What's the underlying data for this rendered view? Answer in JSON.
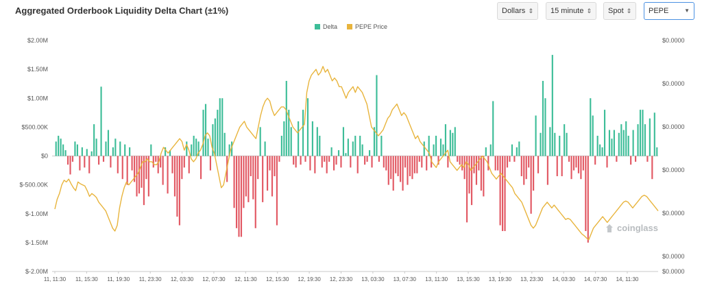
{
  "header": {
    "title": "Aggregated Orderbook Liquidity Delta Chart (±1%)"
  },
  "controls": {
    "currency": "Dollars",
    "interval": "15 minute",
    "market": "Spot",
    "symbol": "PEPE"
  },
  "watermark": "coinglass",
  "colors": {
    "positive": "#3dbd98",
    "negative": "#e25863",
    "price": "#e8b43c",
    "grid": "#f0f0f0",
    "axis": "#c8c8c8"
  },
  "chart_data": {
    "type": "bar",
    "title": "Aggregated Orderbook Liquidity Delta Chart (±1%)",
    "legend": [
      "Delta",
      "PEPE Price"
    ],
    "legend_position": "top-center",
    "grid": false,
    "y_left": {
      "ticks": [
        "$2.00M",
        "$1.50M",
        "$1.00M",
        "$500.00K",
        "$0",
        "$-500.00K",
        "$-1.00M",
        "$-1.50M",
        "$-2.00M"
      ],
      "values": [
        2000000,
        1500000,
        1000000,
        500000,
        0,
        -500000,
        -1000000,
        -1500000,
        -2000000
      ],
      "range": [
        -2000000,
        2000000
      ]
    },
    "y_right": {
      "ticks": [
        "$0.0000",
        "$0.0000",
        "$0.0000",
        "$0.0000",
        "$0.0000",
        "$0.0000",
        "$0.0000"
      ]
    },
    "x_ticks": [
      "11, 11:30",
      "11, 15:30",
      "11, 19:30",
      "11, 23:30",
      "12, 03:30",
      "12, 07:30",
      "12, 11:30",
      "12, 15:30",
      "12, 19:30",
      "12, 23:30",
      "13, 03:30",
      "13, 07:30",
      "13, 11:30",
      "13, 15:30",
      "13, 19:30",
      "13, 23:30",
      "14, 03:30",
      "14, 07:30",
      "14, 11:30"
    ],
    "series": [
      {
        "name": "Delta",
        "kind": "bar",
        "values": [
          250000,
          350000,
          300000,
          200000,
          100000,
          -150000,
          -320000,
          -100000,
          250000,
          200000,
          -250000,
          150000,
          -200000,
          120000,
          -300000,
          80000,
          550000,
          300000,
          -150000,
          1200000,
          -100000,
          250000,
          450000,
          -200000,
          150000,
          300000,
          -300000,
          250000,
          -400000,
          200000,
          -500000,
          150000,
          -250000,
          -450000,
          -700000,
          -650000,
          -550000,
          -850000,
          -400000,
          -700000,
          200000,
          -200000,
          -100000,
          -300000,
          -200000,
          -500000,
          150000,
          -650000,
          100000,
          -300000,
          -700000,
          -1050000,
          -1200000,
          -400000,
          -200000,
          250000,
          -300000,
          200000,
          350000,
          300000,
          250000,
          -400000,
          800000,
          900000,
          300000,
          -250000,
          550000,
          650000,
          800000,
          1000000,
          1000000,
          400000,
          -450000,
          200000,
          250000,
          -900000,
          -1250000,
          -1400000,
          -1400000,
          -900000,
          -700000,
          -800000,
          -350000,
          -750000,
          -1250000,
          -400000,
          500000,
          -800000,
          250000,
          -600000,
          -250000,
          -700000,
          -350000,
          -1200000,
          -100000,
          350000,
          600000,
          1300000,
          800000,
          500000,
          -150000,
          -200000,
          600000,
          -150000,
          800000,
          -100000,
          1000000,
          -250000,
          600000,
          -300000,
          500000,
          350000,
          -200000,
          -100000,
          -300000,
          -100000,
          150000,
          -250000,
          -150000,
          100000,
          -200000,
          500000,
          50000,
          300000,
          -200000,
          250000,
          350000,
          -300000,
          350000,
          200000,
          -150000,
          -100000,
          100000,
          -200000,
          500000,
          1400000,
          -100000,
          350000,
          -200000,
          -250000,
          -500000,
          -400000,
          -600000,
          -300000,
          -350000,
          -450000,
          -600000,
          -200000,
          -500000,
          -350000,
          -400000,
          -300000,
          -300000,
          -100000,
          -200000,
          250000,
          -250000,
          350000,
          -200000,
          200000,
          350000,
          -150000,
          300000,
          200000,
          550000,
          -200000,
          450000,
          400000,
          500000,
          -100000,
          -150000,
          -250000,
          -400000,
          -1150000,
          -650000,
          -850000,
          -300000,
          -500000,
          -250000,
          -600000,
          -700000,
          150000,
          -250000,
          200000,
          950000,
          -250000,
          -250000,
          -1200000,
          -1300000,
          -1300000,
          -200000,
          -100000,
          200000,
          -100000,
          150000,
          250000,
          -350000,
          -500000,
          -400000,
          -200000,
          -1000000,
          -600000,
          700000,
          -300000,
          400000,
          1300000,
          1000000,
          -500000,
          500000,
          1750000,
          400000,
          -350000,
          350000,
          -350000,
          550000,
          400000,
          -100000,
          -400000,
          -250000,
          -200000,
          -300000,
          -400000,
          -250000,
          -1300000,
          -1500000,
          1000000,
          700000,
          -150000,
          350000,
          200000,
          150000,
          800000,
          -200000,
          450000,
          300000,
          450000,
          -100000,
          400000,
          550000,
          450000,
          600000,
          350000,
          -150000,
          450000,
          -100000,
          550000,
          800000,
          800000,
          550000,
          -100000,
          650000,
          -400000,
          750000,
          150000
        ]
      },
      {
        "name": "PEPE Price",
        "kind": "line",
        "axis": "right",
        "values": [
          -920000,
          -750000,
          -650000,
          -500000,
          -420000,
          -450000,
          -400000,
          -480000,
          -550000,
          -600000,
          -450000,
          -480000,
          -500000,
          -520000,
          -600000,
          -700000,
          -650000,
          -680000,
          -720000,
          -800000,
          -850000,
          -900000,
          -950000,
          -1050000,
          -1150000,
          -1250000,
          -1300000,
          -1200000,
          -900000,
          -700000,
          -550000,
          -450000,
          -500000,
          -450000,
          -400000,
          -350000,
          -300000,
          -200000,
          -100000,
          -100000,
          -50000,
          -100000,
          -100000,
          -150000,
          -150000,
          -100000,
          50000,
          150000,
          100000,
          50000,
          100000,
          150000,
          200000,
          250000,
          300000,
          250000,
          100000,
          200000,
          100000,
          -50000,
          -100000,
          -50000,
          50000,
          100000,
          200000,
          350000,
          400000,
          350000,
          150000,
          50000,
          -150000,
          -350000,
          -550000,
          -500000,
          -300000,
          -100000,
          100000,
          200000,
          300000,
          400000,
          500000,
          550000,
          600000,
          500000,
          450000,
          400000,
          350000,
          300000,
          500000,
          700000,
          850000,
          950000,
          1000000,
          950000,
          800000,
          700000,
          750000,
          800000,
          850000,
          850000,
          800000,
          700000,
          600000,
          500000,
          450000,
          400000,
          450000,
          500000,
          550000,
          1100000,
          1300000,
          1400000,
          1450000,
          1500000,
          1400000,
          1450000,
          1550000,
          1450000,
          1500000,
          1400000,
          1300000,
          1350000,
          1300000,
          1200000,
          1200000,
          1100000,
          1000000,
          1100000,
          1150000,
          1200000,
          1100000,
          1200000,
          1150000,
          1100000,
          1000000,
          900000,
          700000,
          500000,
          450000,
          400000,
          350000,
          400000,
          450000,
          550000,
          650000,
          700000,
          800000,
          850000,
          900000,
          800000,
          700000,
          750000,
          700000,
          600000,
          500000,
          400000,
          300000,
          350000,
          250000,
          200000,
          150000,
          100000,
          50000,
          -100000,
          -150000,
          -200000,
          -100000,
          -50000,
          0,
          50000,
          100000,
          -100000,
          -150000,
          -200000,
          -250000,
          -200000,
          -150000,
          -200000,
          -100000,
          -150000,
          -250000,
          -200000,
          -150000,
          -100000,
          -50000,
          0,
          -50000,
          -100000,
          -200000,
          -300000,
          -350000,
          -400000,
          -350000,
          -300000,
          -350000,
          -400000,
          -450000,
          -500000,
          -550000,
          -650000,
          -700000,
          -750000,
          -800000,
          -900000,
          -1000000,
          -1100000,
          -1200000,
          -1250000,
          -1200000,
          -1100000,
          -1000000,
          -900000,
          -850000,
          -800000,
          -850000,
          -900000,
          -850000,
          -900000,
          -950000,
          -1000000,
          -1050000,
          -1100000,
          -1080000,
          -1100000,
          -1150000,
          -1200000,
          -1250000,
          -1300000,
          -1350000,
          -1380000,
          -1420000,
          -1450000,
          -1350000,
          -1250000,
          -1200000,
          -1150000,
          -1100000,
          -1050000,
          -1100000,
          -1150000,
          -1100000,
          -1050000,
          -1000000,
          -950000,
          -900000,
          -850000,
          -800000,
          -780000,
          -800000,
          -850000,
          -900000,
          -850000,
          -800000,
          -750000,
          -700000,
          -680000,
          -700000,
          -750000,
          -800000,
          -850000,
          -900000,
          -950000
        ]
      }
    ]
  }
}
